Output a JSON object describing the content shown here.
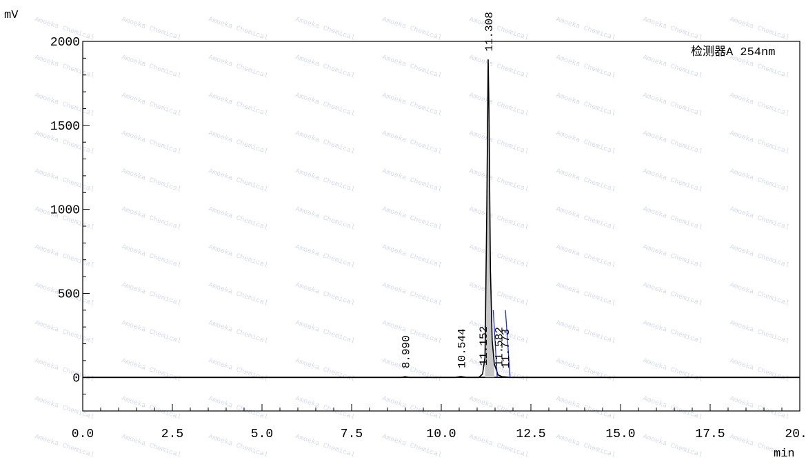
{
  "chart_data": {
    "type": "line",
    "ylabel": "mV",
    "xlabel": "min",
    "detector_label": "检测器A 254nm",
    "xlim": [
      0,
      20
    ],
    "ylim": [
      -200,
      2000
    ],
    "x_ticks": [
      "0.0",
      "2.5",
      "5.0",
      "7.5",
      "10.0",
      "12.5",
      "15.0",
      "17.5",
      "20.0"
    ],
    "y_ticks": [
      "2000",
      "1500",
      "1000",
      "500",
      "0"
    ],
    "grid": false,
    "series": [
      {
        "points": [
          [
            0,
            0
          ],
          [
            8.9,
            0
          ],
          [
            8.99,
            4
          ],
          [
            9.1,
            0
          ],
          [
            10.4,
            0
          ],
          [
            10.544,
            5
          ],
          [
            10.7,
            0
          ],
          [
            11.05,
            0
          ],
          [
            11.152,
            20
          ],
          [
            11.22,
            120
          ],
          [
            11.27,
            1000
          ],
          [
            11.308,
            1890
          ],
          [
            11.33,
            1600
          ],
          [
            11.37,
            650
          ],
          [
            11.42,
            220
          ],
          [
            11.48,
            80
          ],
          [
            11.582,
            15
          ],
          [
            11.7,
            4
          ],
          [
            11.773,
            3
          ],
          [
            11.9,
            0
          ],
          [
            20,
            0
          ]
        ]
      }
    ],
    "peaks": [
      {
        "rt": "8.990",
        "x": 8.99,
        "y": 4
      },
      {
        "rt": "10.544",
        "x": 10.544,
        "y": 5
      },
      {
        "rt": "11.152",
        "x": 11.152,
        "y": 20
      },
      {
        "rt": "11.308",
        "x": 11.308,
        "y": 1890
      },
      {
        "rt": "11.582",
        "x": 11.582,
        "y": 15
      },
      {
        "rt": "11.773",
        "x": 11.773,
        "y": 3
      }
    ],
    "integration_marks": [
      {
        "x0": 11.45,
        "x1": 11.56,
        "ytop": 400
      },
      {
        "x0": 11.79,
        "x1": 11.92,
        "ytop": 400
      }
    ],
    "watermark": "Amoeka Chemical",
    "colors": {
      "trace": "#000000",
      "integration": "#1a2cff",
      "peak_fill": "#c7c7c7",
      "axis": "#000000"
    }
  }
}
